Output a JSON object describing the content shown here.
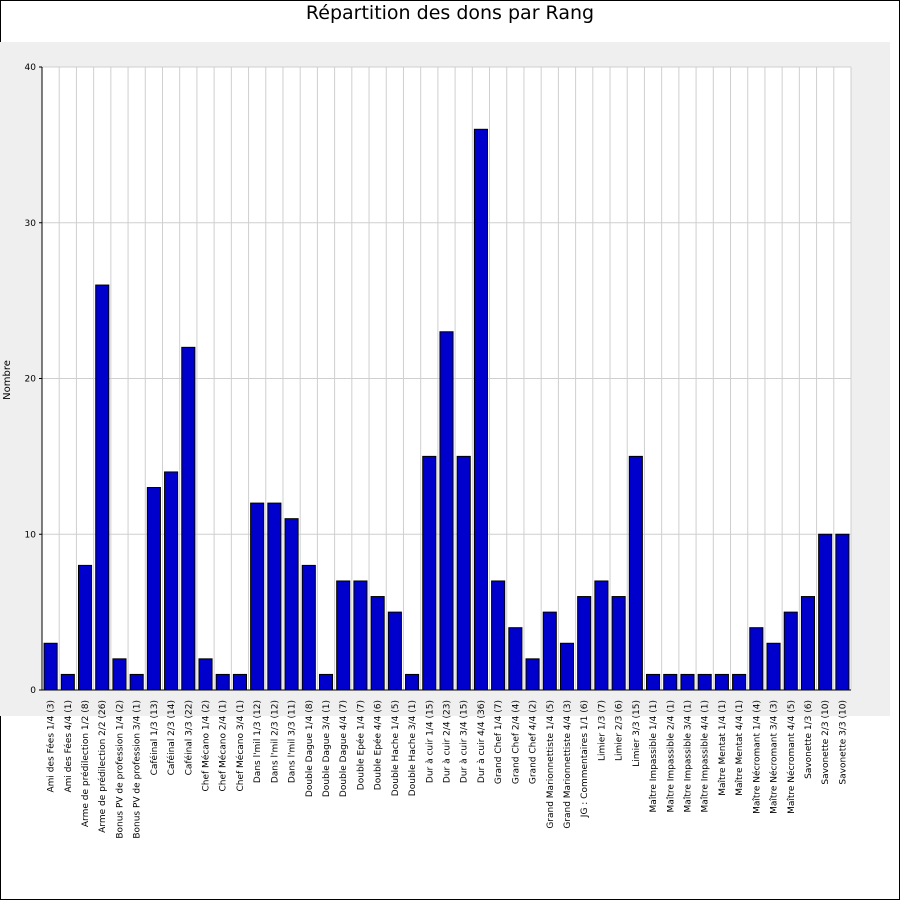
{
  "chart_data": {
    "type": "bar",
    "title": "Répartition des dons par Rang",
    "xlabel": "",
    "ylabel": "Nombre",
    "ylim": [
      0,
      40
    ],
    "yticks": [
      0,
      10,
      20,
      30,
      40
    ],
    "grid": true,
    "bar_color": "#0000cc",
    "background_color": "#efefef",
    "categories": [
      "Ami des Fées 1/4 (3)",
      "Ami des Fées 4/4 (1)",
      "Arme de prédilection 1/2 (8)",
      "Arme de prédilection 2/2 (26)",
      "Bonus PV de profession 1/4 (2)",
      "Bonus PV de profession 3/4 (1)",
      "Caféinal 1/3 (13)",
      "Caféinal 2/3 (14)",
      "Caféinal 3/3 (22)",
      "Chef Mécano 1/4 (2)",
      "Chef Mécano 2/4 (1)",
      "Chef Mécano 3/4 (1)",
      "Dans l'mil 1/3 (12)",
      "Dans l'mil 2/3 (12)",
      "Dans l'mil 3/3 (11)",
      "Double Dague 1/4 (8)",
      "Double Dague 3/4 (1)",
      "Double Dague 4/4 (7)",
      "Double Epée 1/4 (7)",
      "Double Epée 4/4 (6)",
      "Double Hache 1/4 (5)",
      "Double Hache 3/4 (1)",
      "Dur à cuir 1/4 (15)",
      "Dur à cuir 2/4 (23)",
      "Dur à cuir 3/4 (15)",
      "Dur à cuir 4/4 (36)",
      "Grand Chef 1/4 (7)",
      "Grand Chef 2/4 (4)",
      "Grand Chef 4/4 (2)",
      "Grand Marionnettiste 1/4 (5)",
      "Grand Marionnettiste 4/4 (3)",
      "JG : Commentaires 1/1 (6)",
      "Limier 1/3 (7)",
      "Limier 2/3 (6)",
      "Limier 3/3 (15)",
      "Maître Impassible 1/4 (1)",
      "Maître Impassible 2/4 (1)",
      "Maître Impassible 3/4 (1)",
      "Maître Impassible 4/4 (1)",
      "Maître Mentat 1/4 (1)",
      "Maître Mentat 4/4 (1)",
      "Maître Nécromant 1/4 (4)",
      "Maître Nécromant 3/4 (3)",
      "Maître Nécromant 4/4 (5)",
      "Savonette 1/3 (6)",
      "Savonette 2/3 (10)",
      "Savonette 3/3 (10)"
    ],
    "values": [
      3,
      1,
      8,
      26,
      2,
      1,
      13,
      14,
      22,
      2,
      1,
      1,
      12,
      12,
      11,
      8,
      1,
      7,
      7,
      6,
      5,
      1,
      15,
      23,
      15,
      36,
      7,
      4,
      2,
      5,
      3,
      6,
      7,
      6,
      15,
      1,
      1,
      1,
      1,
      1,
      1,
      4,
      3,
      5,
      6,
      10,
      10
    ]
  }
}
